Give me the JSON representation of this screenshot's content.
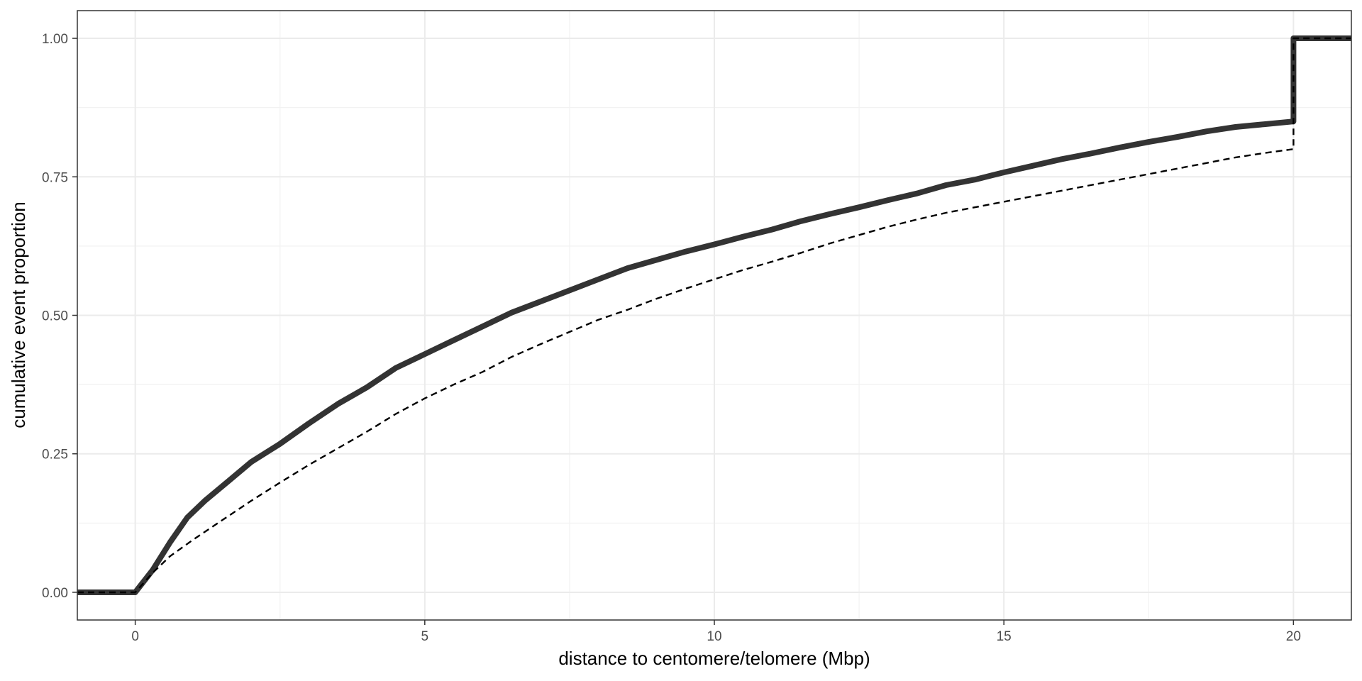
{
  "chart_data": {
    "type": "line",
    "title": "",
    "xlabel": "distance to centomere/telomere (Mbp)",
    "ylabel": "cumulative event proportion",
    "xlim": [
      -1,
      21
    ],
    "ylim": [
      -0.05,
      1.05
    ],
    "x_ticks": [
      0,
      5,
      10,
      15,
      20
    ],
    "y_ticks": [
      0,
      0.25,
      0.5,
      0.75,
      1.0
    ],
    "x_tick_labels": [
      "0",
      "5",
      "10",
      "15",
      "20"
    ],
    "y_tick_labels": [
      "0.00",
      "0.25",
      "0.50",
      "0.75",
      "1.00"
    ],
    "grid": true,
    "legend": "none",
    "series": [
      {
        "style": "solid-thick",
        "color": "#333333",
        "points": [
          [
            -1,
            0
          ],
          [
            0,
            0
          ],
          [
            0.3,
            0.04
          ],
          [
            0.6,
            0.09
          ],
          [
            0.9,
            0.135
          ],
          [
            1.2,
            0.165
          ],
          [
            1.6,
            0.2
          ],
          [
            2,
            0.235
          ],
          [
            2.5,
            0.268
          ],
          [
            3,
            0.305
          ],
          [
            3.5,
            0.34
          ],
          [
            4,
            0.37
          ],
          [
            4.5,
            0.405
          ],
          [
            5,
            0.43
          ],
          [
            5.5,
            0.455
          ],
          [
            6,
            0.48
          ],
          [
            6.5,
            0.505
          ],
          [
            7,
            0.525
          ],
          [
            7.5,
            0.545
          ],
          [
            8,
            0.565
          ],
          [
            8.5,
            0.585
          ],
          [
            9,
            0.6
          ],
          [
            9.5,
            0.615
          ],
          [
            10,
            0.628
          ],
          [
            10.5,
            0.642
          ],
          [
            11,
            0.655
          ],
          [
            11.5,
            0.67
          ],
          [
            12,
            0.683
          ],
          [
            12.5,
            0.695
          ],
          [
            13,
            0.708
          ],
          [
            13.5,
            0.72
          ],
          [
            14,
            0.735
          ],
          [
            14.5,
            0.745
          ],
          [
            15,
            0.758
          ],
          [
            15.5,
            0.77
          ],
          [
            16,
            0.782
          ],
          [
            16.5,
            0.792
          ],
          [
            17,
            0.803
          ],
          [
            17.5,
            0.813
          ],
          [
            18,
            0.822
          ],
          [
            18.5,
            0.832
          ],
          [
            19,
            0.84
          ],
          [
            19.5,
            0.845
          ],
          [
            20,
            0.85
          ],
          [
            20,
            1.0
          ],
          [
            21,
            1.0
          ]
        ]
      },
      {
        "style": "dashed-thin",
        "color": "#000000",
        "points": [
          [
            -1,
            0
          ],
          [
            0,
            0
          ],
          [
            0.3,
            0.035
          ],
          [
            0.6,
            0.065
          ],
          [
            1,
            0.095
          ],
          [
            1.5,
            0.13
          ],
          [
            2,
            0.165
          ],
          [
            2.5,
            0.198
          ],
          [
            3,
            0.23
          ],
          [
            3.5,
            0.26
          ],
          [
            4,
            0.29
          ],
          [
            4.5,
            0.322
          ],
          [
            5,
            0.35
          ],
          [
            5.5,
            0.375
          ],
          [
            6,
            0.398
          ],
          [
            6.5,
            0.425
          ],
          [
            7,
            0.448
          ],
          [
            7.5,
            0.47
          ],
          [
            8,
            0.492
          ],
          [
            8.5,
            0.51
          ],
          [
            9,
            0.53
          ],
          [
            9.5,
            0.548
          ],
          [
            10,
            0.565
          ],
          [
            10.5,
            0.582
          ],
          [
            11,
            0.597
          ],
          [
            11.5,
            0.613
          ],
          [
            12,
            0.63
          ],
          [
            12.5,
            0.645
          ],
          [
            13,
            0.66
          ],
          [
            13.5,
            0.673
          ],
          [
            14,
            0.685
          ],
          [
            14.5,
            0.695
          ],
          [
            15,
            0.705
          ],
          [
            15.5,
            0.715
          ],
          [
            16,
            0.725
          ],
          [
            16.5,
            0.735
          ],
          [
            17,
            0.745
          ],
          [
            17.5,
            0.755
          ],
          [
            18,
            0.765
          ],
          [
            18.5,
            0.775
          ],
          [
            19,
            0.785
          ],
          [
            19.5,
            0.793
          ],
          [
            20,
            0.8
          ],
          [
            20,
            1.0
          ],
          [
            21,
            1.0
          ]
        ]
      }
    ]
  }
}
